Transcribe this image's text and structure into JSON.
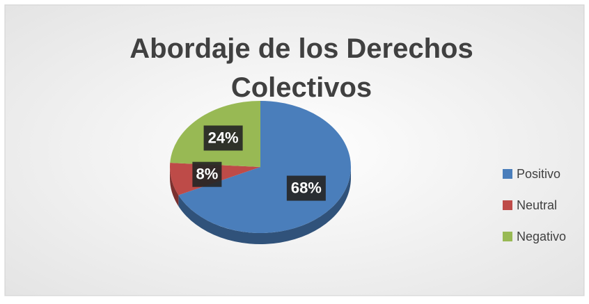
{
  "chart_data": {
    "type": "pie",
    "title": "Abordaje de los Derechos Colectivos",
    "categories": [
      "Positivo",
      "Neutral",
      "Negativo"
    ],
    "values": [
      68,
      8,
      24
    ],
    "value_labels": [
      "68%",
      "8%",
      "24%"
    ],
    "colors": [
      "#4a7ebb",
      "#be4b48",
      "#98b954"
    ],
    "legend": "right"
  }
}
